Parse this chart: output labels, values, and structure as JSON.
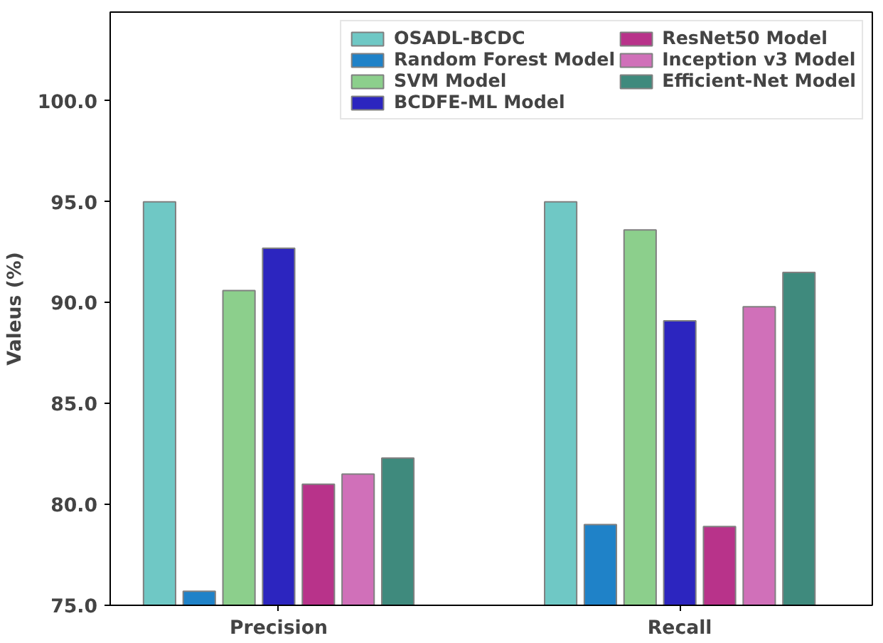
{
  "chart_data": {
    "type": "bar",
    "ylabel": "Valeus (%)",
    "categories": [
      "Precision",
      "Recall"
    ],
    "series": [
      {
        "name": "OSADL-BCDC",
        "color": "#6fc8c5",
        "values": [
          95.0,
          95.0
        ]
      },
      {
        "name": "Random Forest Model",
        "color": "#1f82c8",
        "values": [
          75.7,
          79.0
        ]
      },
      {
        "name": "SVM Model",
        "color": "#8ccf8c",
        "values": [
          90.6,
          93.6
        ]
      },
      {
        "name": "BCDFE-ML Model",
        "color": "#2c25bf",
        "values": [
          92.7,
          89.1
        ]
      },
      {
        "name": "ResNet50 Model",
        "color": "#b8338a",
        "values": [
          81.0,
          78.9
        ]
      },
      {
        "name": "Inception v3 Model",
        "color": "#d070b9",
        "values": [
          81.5,
          89.8
        ]
      },
      {
        "name": "Efficient-Net Model",
        "color": "#3f8a7d",
        "values": [
          82.3,
          91.5
        ]
      }
    ],
    "ylim": [
      75,
      104.4
    ],
    "yticks": [
      {
        "value": 75,
        "label": "75.0"
      },
      {
        "value": 80,
        "label": "80.0"
      },
      {
        "value": 85,
        "label": "85.0"
      },
      {
        "value": 90,
        "label": "90.0"
      },
      {
        "value": 95,
        "label": "95.0"
      },
      {
        "value": 100,
        "label": "100.0"
      }
    ],
    "legend": "top right",
    "grid": false
  }
}
